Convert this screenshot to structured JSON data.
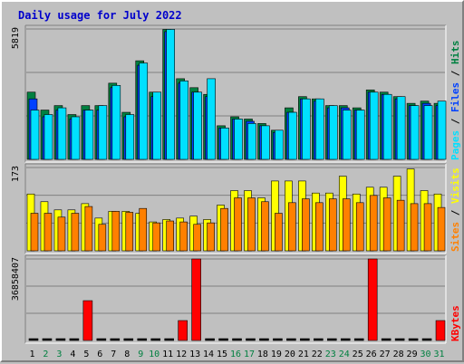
{
  "title": "Daily usage for July 2022",
  "colors": {
    "title": "#0000cc",
    "background": "#c0c0c0",
    "hits": "#008040",
    "files": "#0040ff",
    "pages": "#00e0ff",
    "visits": "#ffff00",
    "sites": "#ff8000",
    "kbytes": "#ff0000",
    "weekday_label": "#000000",
    "weekend_label": "#008040"
  },
  "chart_data": [
    {
      "type": "bar",
      "panel": "hits-files-pages",
      "ymax_label": "5819",
      "ylim": [
        0,
        5819
      ],
      "grid": true,
      "legend": [
        {
          "name": "Pages",
          "color": "#00e0ff"
        },
        {
          "name": "Files",
          "color": "#0040ff"
        },
        {
          "name": "Hits",
          "color": "#008040"
        }
      ],
      "categories": [
        "1",
        "2",
        "3",
        "4",
        "5",
        "6",
        "7",
        "8",
        "9",
        "10",
        "11",
        "12",
        "13",
        "14",
        "15",
        "16",
        "17",
        "18",
        "19",
        "20",
        "21",
        "22",
        "23",
        "24",
        "25",
        "26",
        "27",
        "28",
        "29",
        "30",
        "31"
      ],
      "series": [
        {
          "name": "Hits",
          "color": "#008040",
          "values": [
            3000,
            2200,
            2400,
            2000,
            2400,
            2400,
            3400,
            2100,
            4400,
            3000,
            5800,
            3600,
            3200,
            2900,
            1500,
            1900,
            1800,
            1600,
            1300,
            2300,
            2800,
            2700,
            2400,
            2400,
            2300,
            3100,
            3000,
            2800,
            2500,
            2600,
            2500
          ]
        },
        {
          "name": "Files",
          "color": "#0040ff",
          "values": [
            2700,
            1900,
            2200,
            1800,
            2200,
            2200,
            3200,
            1900,
            4200,
            2800,
            5700,
            3400,
            3000,
            2800,
            1400,
            1800,
            1700,
            1500,
            1200,
            2100,
            2700,
            2600,
            2300,
            2300,
            2200,
            3000,
            2900,
            2700,
            2400,
            2500,
            2400
          ]
        },
        {
          "name": "Pages",
          "color": "#00e0ff",
          "values": [
            2200,
            2000,
            2300,
            1900,
            2200,
            2400,
            3300,
            2000,
            4300,
            3000,
            5800,
            3500,
            3000,
            3600,
            1400,
            1800,
            1600,
            1500,
            1300,
            2100,
            2700,
            2700,
            2400,
            2200,
            2200,
            3000,
            2900,
            2800,
            2400,
            2400,
            2600
          ]
        }
      ]
    },
    {
      "type": "bar",
      "panel": "visits-sites",
      "ymax_label": "173",
      "ylim": [
        0,
        173
      ],
      "grid": true,
      "legend": [
        {
          "name": "Sites",
          "color": "#ff8000"
        },
        {
          "name": "Visits",
          "color": "#ffff00"
        }
      ],
      "categories": [
        "1",
        "2",
        "3",
        "4",
        "5",
        "6",
        "7",
        "8",
        "9",
        "10",
        "11",
        "12",
        "13",
        "14",
        "15",
        "16",
        "17",
        "18",
        "19",
        "20",
        "21",
        "22",
        "23",
        "24",
        "25",
        "26",
        "27",
        "28",
        "29",
        "30",
        "31"
      ],
      "series": [
        {
          "name": "Visits",
          "color": "#ffff00",
          "values": [
            118,
            102,
            85,
            85,
            98,
            68,
            82,
            82,
            78,
            60,
            65,
            68,
            72,
            65,
            95,
            125,
            125,
            110,
            145,
            145,
            145,
            120,
            120,
            155,
            118,
            132,
            132,
            155,
            170,
            125,
            118
          ]
        },
        {
          "name": "Sites",
          "color": "#ff8000",
          "values": [
            78,
            78,
            70,
            78,
            92,
            55,
            82,
            80,
            88,
            58,
            62,
            60,
            55,
            58,
            88,
            110,
            110,
            102,
            78,
            100,
            108,
            100,
            108,
            108,
            100,
            115,
            110,
            105,
            98,
            98,
            90
          ]
        }
      ]
    },
    {
      "type": "bar",
      "panel": "kbytes",
      "ymax_label": "36858407",
      "ylim": [
        0,
        36858407
      ],
      "grid": true,
      "legend": [
        {
          "name": "KBytes",
          "color": "#ff0000"
        }
      ],
      "categories": [
        "1",
        "2",
        "3",
        "4",
        "5",
        "6",
        "7",
        "8",
        "9",
        "10",
        "11",
        "12",
        "13",
        "14",
        "15",
        "16",
        "17",
        "18",
        "19",
        "20",
        "21",
        "22",
        "23",
        "24",
        "25",
        "26",
        "27",
        "28",
        "29",
        "30",
        "31"
      ],
      "series": [
        {
          "name": "KBytes",
          "color": "#ff0000",
          "values": [
            0,
            0,
            0,
            0,
            18000000,
            0,
            0,
            0,
            0,
            0,
            0,
            9000000,
            36858407,
            0,
            0,
            0,
            0,
            0,
            0,
            0,
            0,
            0,
            0,
            0,
            0,
            36858407,
            0,
            0,
            0,
            0,
            9000000
          ]
        }
      ]
    }
  ],
  "x_labels": [
    {
      "text": "1",
      "weekend": false
    },
    {
      "text": "2",
      "weekend": true
    },
    {
      "text": "3",
      "weekend": true
    },
    {
      "text": "4",
      "weekend": false
    },
    {
      "text": "5",
      "weekend": false
    },
    {
      "text": "6",
      "weekend": false
    },
    {
      "text": "7",
      "weekend": false
    },
    {
      "text": "8",
      "weekend": false
    },
    {
      "text": "9",
      "weekend": true
    },
    {
      "text": "10",
      "weekend": true
    },
    {
      "text": "11",
      "weekend": false
    },
    {
      "text": "12",
      "weekend": false
    },
    {
      "text": "13",
      "weekend": false
    },
    {
      "text": "14",
      "weekend": false
    },
    {
      "text": "15",
      "weekend": false
    },
    {
      "text": "16",
      "weekend": true
    },
    {
      "text": "17",
      "weekend": true
    },
    {
      "text": "18",
      "weekend": false
    },
    {
      "text": "19",
      "weekend": false
    },
    {
      "text": "20",
      "weekend": false
    },
    {
      "text": "21",
      "weekend": false
    },
    {
      "text": "22",
      "weekend": false
    },
    {
      "text": "23",
      "weekend": true
    },
    {
      "text": "24",
      "weekend": true
    },
    {
      "text": "25",
      "weekend": false
    },
    {
      "text": "26",
      "weekend": false
    },
    {
      "text": "27",
      "weekend": false
    },
    {
      "text": "28",
      "weekend": false
    },
    {
      "text": "29",
      "weekend": false
    },
    {
      "text": "30",
      "weekend": true
    },
    {
      "text": "31",
      "weekend": true
    }
  ]
}
